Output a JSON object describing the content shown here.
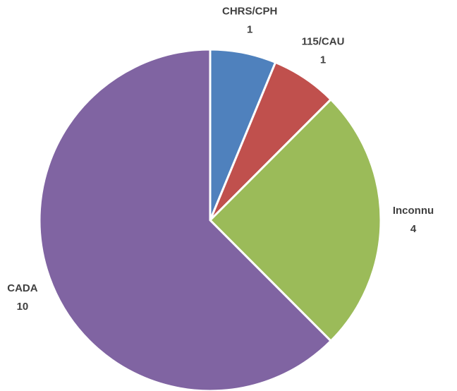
{
  "chart_data": {
    "type": "pie",
    "categories": [
      "CHRS/CPH",
      "115/CAU",
      "Inconnu",
      "CADA"
    ],
    "values": [
      1,
      1,
      4,
      10
    ],
    "colors": [
      "#4f81bd",
      "#c0504d",
      "#9bbb59",
      "#8064a2"
    ]
  }
}
